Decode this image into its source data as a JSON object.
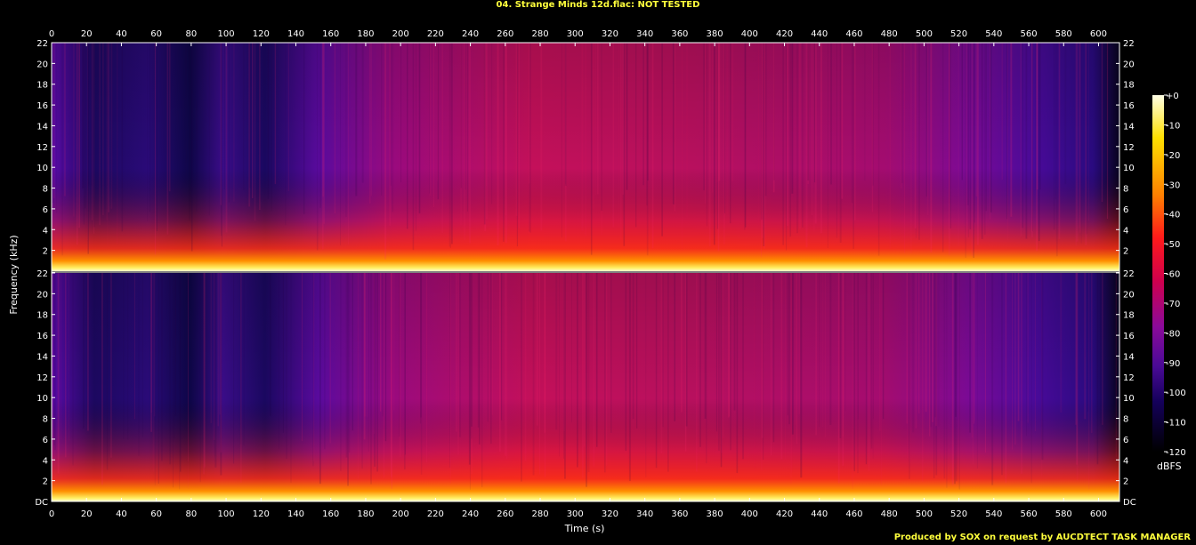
{
  "title": "04. Strange Minds 12d.flac: NOT TESTED",
  "footer": "Produced by SOX on request by AUCDTECT TASK MANAGER",
  "chart_data": {
    "type": "heatmap",
    "subtype": "spectrogram",
    "channels": 2,
    "xlabel": "Time (s)",
    "ylabel": "Frequency (kHz)",
    "xlim": [
      0,
      612
    ],
    "ylim": [
      0,
      22
    ],
    "x_ticks": [
      "0",
      "20",
      "40",
      "60",
      "80",
      "100",
      "120",
      "140",
      "160",
      "180",
      "200",
      "220",
      "240",
      "260",
      "280",
      "300",
      "320",
      "340",
      "360",
      "380",
      "400",
      "420",
      "440",
      "460",
      "480",
      "500",
      "520",
      "540",
      "560",
      "580",
      "600"
    ],
    "y_ticks": [
      "DC",
      "2",
      "4",
      "6",
      "8",
      "10",
      "12",
      "14",
      "16",
      "18",
      "20",
      "22"
    ],
    "colorbar": {
      "label": "dBFS",
      "range": [
        -120,
        0
      ],
      "ticks": [
        "+0",
        "-10",
        "-20",
        "-30",
        "-40",
        "-50",
        "-60",
        "-70",
        "-80",
        "-90",
        "-100",
        "-110",
        "-120"
      ]
    },
    "colormap": [
      "#000000",
      "#14004a",
      "#3c0a8c",
      "#7a0a9a",
      "#c40060",
      "#ff1a1a",
      "#ff7800",
      "#ffd000",
      "#ffffc8"
    ]
  }
}
